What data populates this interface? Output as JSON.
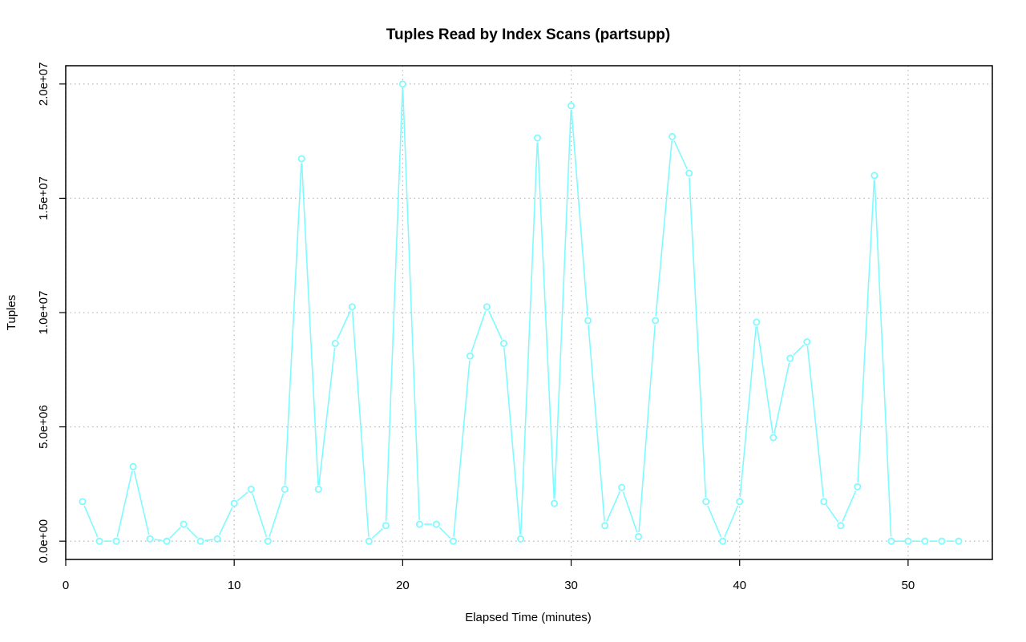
{
  "chart_data": {
    "type": "line",
    "title": "Tuples Read by Index Scans (partsupp)",
    "xlabel": "Elapsed Time (minutes)",
    "ylabel": "Tuples",
    "xlim": [
      0,
      55
    ],
    "ylim": [
      -800000,
      20800000
    ],
    "x_ticks": [
      0,
      10,
      20,
      30,
      40,
      50
    ],
    "x_tick_labels": [
      "0",
      "10",
      "20",
      "30",
      "40",
      "50"
    ],
    "y_ticks": [
      0,
      5000000,
      10000000,
      15000000,
      20000000
    ],
    "y_tick_labels": [
      "0.0e+00",
      "5.0e+06",
      "1.0e+07",
      "1.5e+07",
      "2.0e+07"
    ],
    "grid": true,
    "color": "#7ffbff",
    "series": [
      {
        "x": [
          1,
          2,
          3,
          4,
          5,
          6,
          7,
          8,
          9,
          10,
          11,
          12,
          13,
          14,
          15,
          16,
          17,
          18,
          19,
          20,
          21,
          22,
          23,
          24,
          25,
          26,
          27,
          28,
          29,
          30,
          31,
          32,
          33,
          34,
          35,
          36,
          37,
          38,
          39,
          40,
          41,
          42,
          43,
          44,
          45,
          46,
          47,
          48,
          49,
          50,
          51,
          52,
          53
        ],
        "values": [
          1730000,
          0,
          0,
          3260000,
          100000,
          0,
          740000,
          0,
          100000,
          1650000,
          2270000,
          0,
          2270000,
          16730000,
          2270000,
          8650000,
          10250000,
          0,
          680000,
          20000000,
          740000,
          740000,
          0,
          8100000,
          10250000,
          8650000,
          100000,
          17640000,
          1650000,
          19050000,
          9650000,
          680000,
          2350000,
          200000,
          9650000,
          17700000,
          16100000,
          1730000,
          0,
          1730000,
          9580000,
          4530000,
          8000000,
          8720000,
          1730000,
          680000,
          2380000,
          16000000,
          0,
          0,
          0,
          0,
          0
        ]
      }
    ]
  }
}
